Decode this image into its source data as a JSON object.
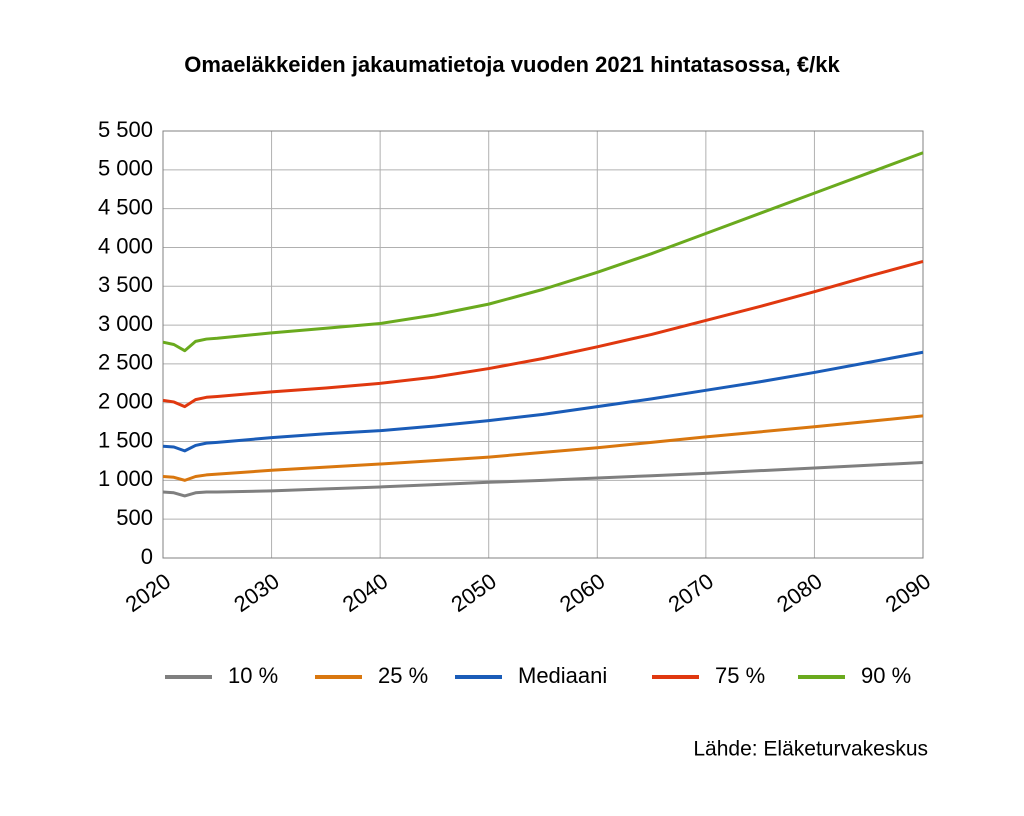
{
  "chart_data": {
    "type": "line",
    "title": "Omaeläkkeiden jakaumatietoja vuoden 2021 hintatasossa, €/kk",
    "source": "Lähde: Eläketurvakeskus",
    "x": [
      2020,
      2021,
      2022,
      2023,
      2024,
      2025,
      2030,
      2035,
      2040,
      2045,
      2050,
      2055,
      2060,
      2065,
      2070,
      2075,
      2080,
      2085,
      2090
    ],
    "series": [
      {
        "name": "10 %",
        "color": "#7f7f7f",
        "values": [
          850,
          840,
          800,
          840,
          850,
          850,
          865,
          890,
          915,
          945,
          975,
          1000,
          1030,
          1060,
          1090,
          1125,
          1160,
          1195,
          1230
        ]
      },
      {
        "name": "25 %",
        "color": "#d9770f",
        "values": [
          1050,
          1040,
          1000,
          1050,
          1070,
          1080,
          1130,
          1170,
          1210,
          1255,
          1300,
          1360,
          1420,
          1490,
          1560,
          1625,
          1690,
          1760,
          1830
        ]
      },
      {
        "name": "Mediaani",
        "color": "#1a5cb8",
        "values": [
          1440,
          1430,
          1380,
          1450,
          1480,
          1490,
          1550,
          1600,
          1640,
          1700,
          1770,
          1850,
          1950,
          2050,
          2160,
          2270,
          2390,
          2520,
          2650
        ]
      },
      {
        "name": "75 %",
        "color": "#e0380f",
        "values": [
          2030,
          2010,
          1950,
          2040,
          2070,
          2080,
          2140,
          2190,
          2250,
          2330,
          2440,
          2570,
          2720,
          2880,
          3060,
          3240,
          3430,
          3630,
          3820
        ]
      },
      {
        "name": "90 %",
        "color": "#6aaa1e",
        "values": [
          2780,
          2750,
          2670,
          2790,
          2820,
          2830,
          2900,
          2960,
          3020,
          3130,
          3270,
          3460,
          3680,
          3920,
          4180,
          4440,
          4700,
          4960,
          5220
        ]
      }
    ],
    "xlim": [
      2020,
      2090
    ],
    "xticks": [
      2020,
      2030,
      2040,
      2050,
      2060,
      2070,
      2080,
      2090
    ],
    "ylim": [
      0,
      5500
    ],
    "yticks": [
      0,
      500,
      {
        "value": 1000,
        "label": "1 000"
      },
      {
        "value": 1500,
        "label": "1 500"
      },
      {
        "value": 2000,
        "label": "2 000"
      },
      {
        "value": 2500,
        "label": "2 500"
      },
      {
        "value": 3000,
        "label": "3 000"
      },
      {
        "value": 3500,
        "label": "3 500"
      },
      {
        "value": 4000,
        "label": "4 000"
      },
      {
        "value": 4500,
        "label": "4 500"
      },
      {
        "value": 5000,
        "label": "5 000"
      },
      {
        "value": 5500,
        "label": "5 500"
      }
    ],
    "grid": true,
    "legend": "bottom"
  }
}
